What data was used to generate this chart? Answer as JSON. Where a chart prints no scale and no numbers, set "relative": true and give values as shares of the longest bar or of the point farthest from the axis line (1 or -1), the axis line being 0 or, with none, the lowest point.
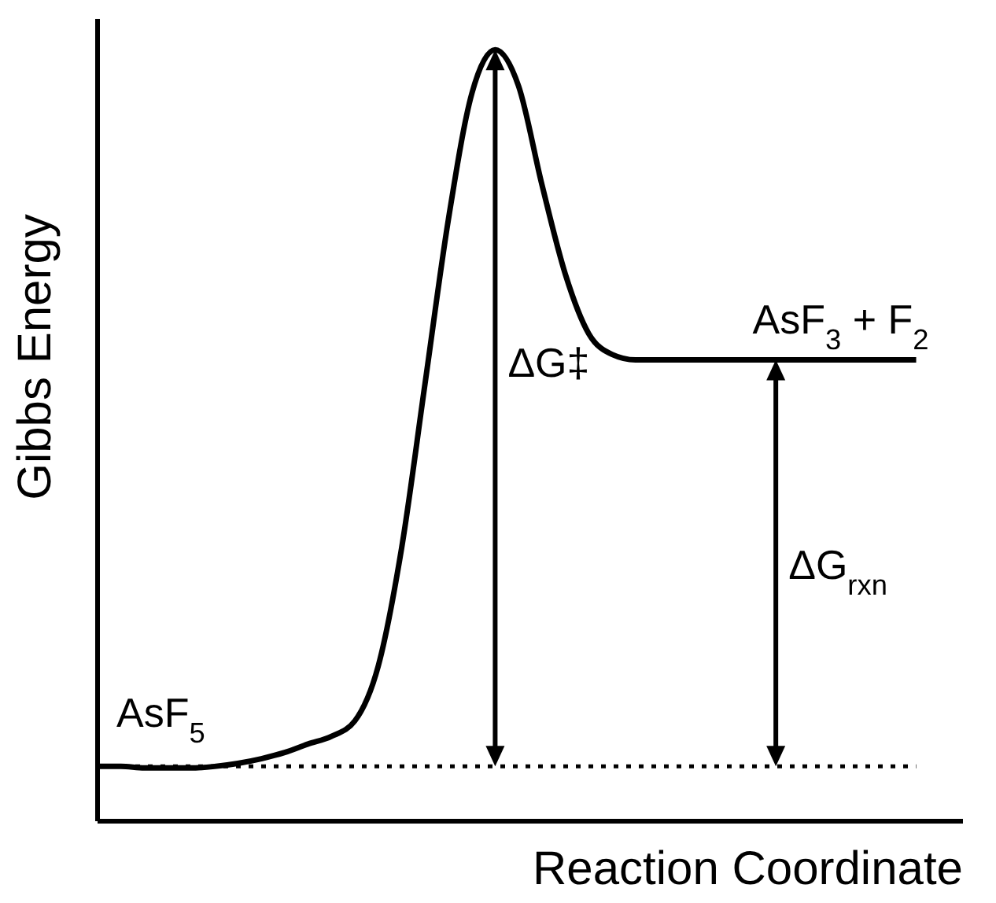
{
  "chart_data": {
    "type": "line",
    "relative": true,
    "xlabel": "Reaction Coordinate",
    "ylabel": "Gibbs Energy",
    "categories": [
      null,
      null,
      null,
      null,
      null,
      null,
      null,
      null,
      null,
      null,
      null,
      null,
      null,
      null,
      null,
      null,
      null,
      null,
      null,
      null,
      null,
      null,
      null,
      null,
      null,
      null,
      null,
      null,
      null,
      null,
      null,
      null,
      null,
      null,
      null,
      null,
      null,
      null
    ],
    "series": [
      {
        "color": "#000000",
        "values": [
          0.071,
          0.071,
          0.069,
          0.069,
          0.069,
          0.071,
          0.075,
          0.081,
          0.089,
          0.1,
          0.11,
          0.13,
          0.201,
          0.354,
          0.567,
          0.78,
          0.943,
          1,
          0.953,
          0.825,
          0.709,
          0.632,
          0.605,
          0.598,
          0.598,
          0.598,
          0.598,
          0.598,
          0.598,
          0.598,
          0.598,
          0.598,
          0.598,
          0.598,
          0.598,
          0.598,
          null,
          null
        ]
      }
    ],
    "ref_lines": [
      {
        "axis": "y",
        "value": 0.071,
        "color": "#000000",
        "line_style": "dotted"
      }
    ],
    "annotations": [
      "AsF$_{5}$",
      "AsF$_{3}$ + F$_{2}$",
      "ΔG‡",
      "ΔG$_{rxn}$"
    ],
    "marker": "none",
    "line_style": "solid"
  }
}
